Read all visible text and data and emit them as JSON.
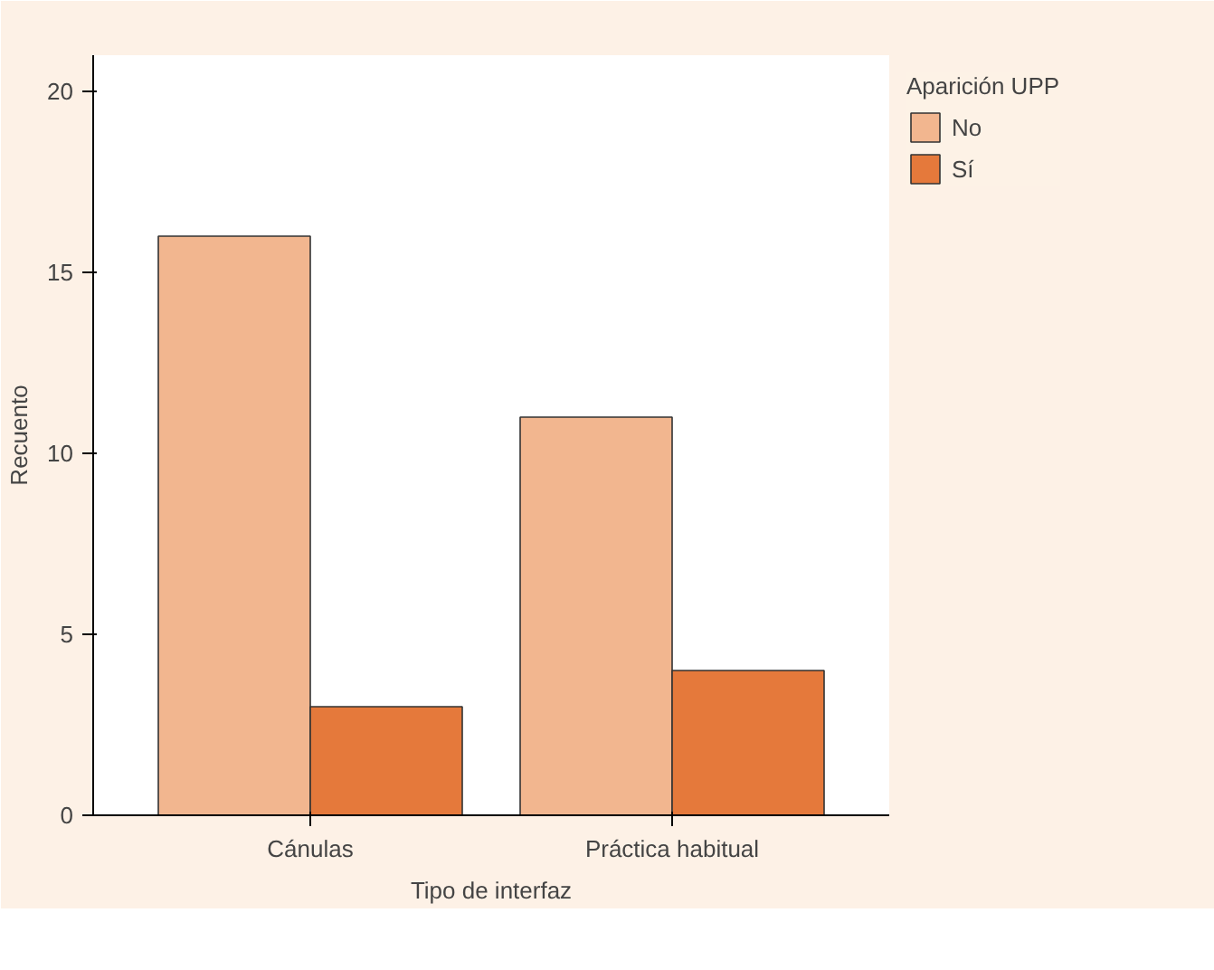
{
  "chart_data": {
    "type": "bar",
    "categories": [
      "Cánulas",
      "Práctica habitual"
    ],
    "series": [
      {
        "name": "No",
        "color": "#f2b68f",
        "values": [
          16,
          11
        ]
      },
      {
        "name": "Sí",
        "color": "#e5793b",
        "values": [
          3,
          4
        ]
      }
    ],
    "xlabel": "Tipo de interfaz",
    "ylabel": "Recuento",
    "legend_title": "Aparición UPP",
    "legend": "right",
    "ylim": [
      0,
      21
    ],
    "yticks": [
      0,
      5,
      10,
      15,
      20
    ],
    "grid": false
  }
}
